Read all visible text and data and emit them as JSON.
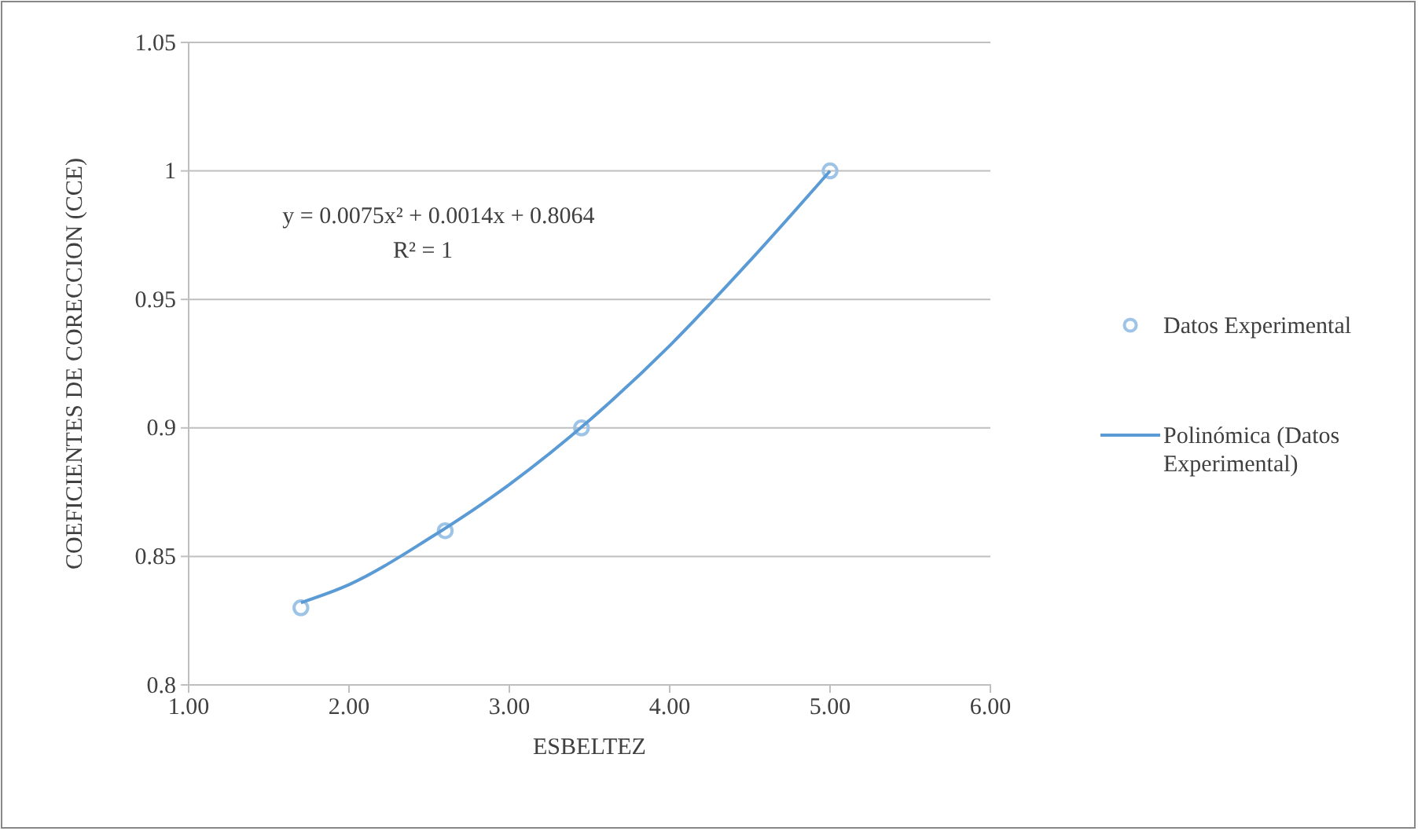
{
  "chart_data": {
    "type": "scatter",
    "xlabel": "ESBELTEZ",
    "ylabel": "COEFICIENTES DE CORECCION (CCE)",
    "xlim": [
      1,
      6
    ],
    "xticks": [
      {
        "value": 1,
        "label": "1.00"
      },
      {
        "value": 2,
        "label": "2.00"
      },
      {
        "value": 3,
        "label": "3.00"
      },
      {
        "value": 4,
        "label": "4.00"
      },
      {
        "value": 5,
        "label": "5.00"
      },
      {
        "value": 6,
        "label": "6.00"
      }
    ],
    "ylim": [
      0.8,
      1.05
    ],
    "yticks": [
      0.8,
      0.85,
      0.9,
      0.95,
      1,
      1.05
    ],
    "grid": "y",
    "legend": "right",
    "series": [
      {
        "name": "Datos Experimental",
        "marker": "circle",
        "color": "#9dc3e6",
        "x": [
          1.7,
          2.6,
          3.45,
          5.0
        ],
        "values": [
          0.83,
          0.86,
          0.9,
          1.0
        ]
      },
      {
        "name": "Polinómica (Datos Experimental)",
        "type": "line",
        "marker": "none",
        "line_style": "solid",
        "color": "#5b9bd5",
        "x": [
          1.7,
          2.0,
          2.5,
          3.0,
          3.5,
          4.0,
          4.5,
          5.0
        ],
        "values": [
          0.832,
          0.839,
          0.857,
          0.878,
          0.903,
          0.932,
          0.965,
          1.0
        ]
      }
    ],
    "annotations": [
      "y = 0.0075x² + 0.0014x + 0.8064",
      "R² = 1"
    ]
  }
}
